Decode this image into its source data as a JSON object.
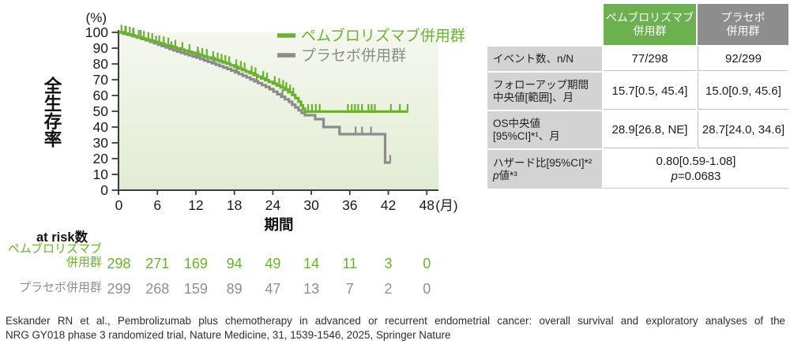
{
  "colors": {
    "pembro_green": "#69b22f",
    "placebo_gray": "#8c8c8c",
    "table_header_green": "#6cb04f",
    "table_header_gray": "#8d8d8d",
    "table_label_bg": "#d3d3d3",
    "plot_bg_top": "#f5f7ef",
    "plot_bg_bottom": "#e2ecd2"
  },
  "chart_data": {
    "type": "line",
    "subtype": "kaplan-meier-step",
    "title": "",
    "ylabel": "全生存率",
    "y_unit": "(%)",
    "xlabel": "期間",
    "x_unit": "(月)",
    "xlim": [
      0,
      48
    ],
    "ylim": [
      0,
      100
    ],
    "xticks": [
      0,
      6,
      12,
      18,
      24,
      30,
      36,
      42,
      48
    ],
    "yticks": [
      0,
      10,
      20,
      30,
      40,
      50,
      60,
      70,
      80,
      90,
      100
    ],
    "legend_position": "top-right",
    "grid": false,
    "series": [
      {
        "name": "プラセボ併用群",
        "color": "#8c8c8c",
        "step_points": [
          [
            0,
            100
          ],
          [
            0.7,
            99.2
          ],
          [
            1.4,
            98.4
          ],
          [
            2.1,
            97.6
          ],
          [
            2.8,
            96.7
          ],
          [
            3.5,
            95.8
          ],
          [
            4.2,
            94.9
          ],
          [
            4.9,
            94
          ],
          [
            5.5,
            93.1
          ],
          [
            6.1,
            92.2
          ],
          [
            6.7,
            91.3
          ],
          [
            7.3,
            90.4
          ],
          [
            7.9,
            89.5
          ],
          [
            8.5,
            88.6
          ],
          [
            9.1,
            87.8
          ],
          [
            9.7,
            87
          ],
          [
            10.3,
            86.2
          ],
          [
            10.9,
            85.4
          ],
          [
            11.5,
            84.7
          ],
          [
            12.1,
            84
          ],
          [
            12.7,
            83.1
          ],
          [
            13.3,
            82.2
          ],
          [
            13.9,
            81.3
          ],
          [
            14.5,
            80.4
          ],
          [
            15.1,
            79.5
          ],
          [
            15.7,
            78.6
          ],
          [
            16.3,
            77.7
          ],
          [
            16.9,
            76.8
          ],
          [
            17.5,
            75.8
          ],
          [
            18.1,
            74.7
          ],
          [
            18.7,
            73.6
          ],
          [
            19.3,
            72.5
          ],
          [
            19.9,
            71.4
          ],
          [
            20.5,
            70.2
          ],
          [
            21.1,
            69
          ],
          [
            21.7,
            67.8
          ],
          [
            22.3,
            66.6
          ],
          [
            22.9,
            65.4
          ],
          [
            23.5,
            64
          ],
          [
            24.1,
            62.4
          ],
          [
            24.7,
            60.8
          ],
          [
            25.3,
            59.2
          ],
          [
            25.9,
            57.6
          ],
          [
            26.5,
            56
          ],
          [
            27,
            54.2
          ],
          [
            27.5,
            52.4
          ],
          [
            28,
            50.6
          ],
          [
            28.5,
            48.9
          ],
          [
            29,
            47.5
          ],
          [
            30.6,
            45
          ],
          [
            31.9,
            40
          ],
          [
            34.4,
            35.5
          ],
          [
            41.5,
            17.5
          ],
          [
            42.4,
            17.5
          ]
        ],
        "censor_marks": [
          1.1,
          2.2,
          3.4,
          5.8,
          8.2,
          12.4,
          14.8,
          18.4,
          21.5,
          25.5,
          36.9,
          37.9,
          39.3,
          42.3
        ]
      },
      {
        "name": "ペムブロリズマブ併用群",
        "color": "#69b22f",
        "step_points": [
          [
            0,
            100
          ],
          [
            0.6,
            99.4
          ],
          [
            1.2,
            98.8
          ],
          [
            1.8,
            98.2
          ],
          [
            2.4,
            97.5
          ],
          [
            3,
            96.8
          ],
          [
            3.6,
            96.1
          ],
          [
            4.2,
            95.4
          ],
          [
            4.8,
            94.7
          ],
          [
            5.4,
            94
          ],
          [
            6,
            93.3
          ],
          [
            6.6,
            92.6
          ],
          [
            7.2,
            91.9
          ],
          [
            7.8,
            91.2
          ],
          [
            8.4,
            90.5
          ],
          [
            9,
            89.8
          ],
          [
            9.6,
            89.1
          ],
          [
            10.2,
            88.4
          ],
          [
            10.8,
            87.7
          ],
          [
            11.4,
            87
          ],
          [
            12,
            86.2
          ],
          [
            12.6,
            85.4
          ],
          [
            13.2,
            84.7
          ],
          [
            13.8,
            84
          ],
          [
            14.4,
            83.3
          ],
          [
            15,
            82.5
          ],
          [
            15.6,
            81.7
          ],
          [
            16.2,
            80.9
          ],
          [
            16.8,
            80.1
          ],
          [
            17.4,
            79.1
          ],
          [
            18,
            78.1
          ],
          [
            18.6,
            77.1
          ],
          [
            19.2,
            76.1
          ],
          [
            19.8,
            75.1
          ],
          [
            20.4,
            74.1
          ],
          [
            21,
            73
          ],
          [
            21.6,
            71.9
          ],
          [
            22.2,
            70.8
          ],
          [
            22.8,
            69.7
          ],
          [
            23.4,
            68.6
          ],
          [
            24,
            67.5
          ],
          [
            24.6,
            66.3
          ],
          [
            25.2,
            65.1
          ],
          [
            25.8,
            63.7
          ],
          [
            26.4,
            62.1
          ],
          [
            27,
            60.3
          ],
          [
            27.5,
            58.3
          ],
          [
            28,
            56.1
          ],
          [
            28.4,
            53.7
          ],
          [
            28.7,
            51.6
          ],
          [
            29,
            49.8
          ],
          [
            45.1,
            49.8
          ]
        ],
        "censor_marks": [
          0.4,
          1,
          1.7,
          2.3,
          3.1,
          3.9,
          4.6,
          5.2,
          6.3,
          7,
          7.7,
          8.8,
          9.9,
          11,
          12.3,
          13,
          13.7,
          14.7,
          15.4,
          16,
          16.6,
          17.2,
          18.3,
          19,
          19.6,
          20.7,
          21.3,
          22.5,
          23.1,
          24.3,
          25,
          25.6,
          26.1,
          26.7,
          27.2,
          29.5,
          30.1,
          30.7,
          31.3,
          35.7,
          36.3,
          36.8,
          37.3,
          37.9,
          38.9,
          39.4,
          39.9,
          42.4,
          43.8,
          45.0
        ]
      }
    ],
    "at_risk": {
      "title": "at risk数",
      "times": [
        0,
        6,
        12,
        18,
        24,
        30,
        36,
        42,
        48
      ],
      "rows": [
        {
          "name_lines": [
            "ペムブロリズマブ",
            "併用群"
          ],
          "color": "#69b22f",
          "counts": [
            298,
            271,
            169,
            94,
            49,
            14,
            11,
            3,
            0
          ]
        },
        {
          "name_lines": [
            "プラセボ併用群"
          ],
          "color": "#8f8f8f",
          "counts": [
            299,
            268,
            159,
            89,
            47,
            13,
            7,
            2,
            0
          ]
        }
      ]
    }
  },
  "summary_table": {
    "col_headers": [
      {
        "lines": [
          "ペムブロリズマブ",
          "併用群"
        ],
        "bg": "#6cb04f"
      },
      {
        "lines": [
          "プラセボ",
          "併用群"
        ],
        "bg": "#8d8d8d"
      }
    ],
    "rows": [
      {
        "label_lines": [
          "イベント数、n/N",
          ""
        ],
        "values": [
          "77/298",
          "92/299"
        ]
      },
      {
        "label_lines": [
          "フォローアップ期間",
          "中央値[範囲]、月"
        ],
        "values": [
          "15.7[0.5, 45.4]",
          "15.0[0.9, 45.6]"
        ]
      },
      {
        "label_lines": [
          "OS中央値",
          "[95%CI]*¹、月"
        ],
        "values": [
          "28.9[26.8, NE]",
          "28.7[24.0, 34.6]"
        ]
      }
    ],
    "hr_row": {
      "label_line1": "ハザード比[95%CI]*²",
      "label_p_italic": "p",
      "label_p_rest": "値*³",
      "value_line1": "0.80[0.59-1.08]",
      "value_p_italic": "p",
      "value_p_rest": "=0.0683"
    }
  },
  "citation": {
    "line1": "Eskander RN et al., Pembrolizumab plus chemotherapy in advanced or recurrent endometrial cancer: overall survival and exploratory analyses of the",
    "line2": "NRG GY018 phase 3 randomized trial, Nature Medicine, 31, 1539-1546, 2025, Springer Nature"
  }
}
